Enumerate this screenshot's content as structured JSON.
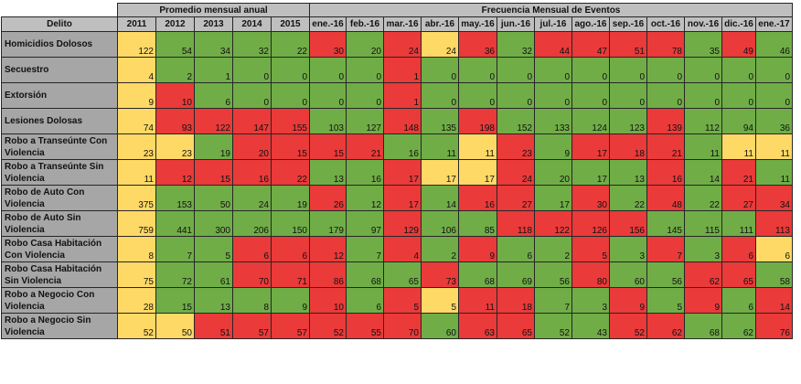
{
  "headers": {
    "delito": "Delito",
    "promedio": "Promedio mensual anual",
    "frecuencia": "Frecuencia Mensual de Eventos",
    "years": [
      "2011",
      "2012",
      "2013",
      "2014",
      "2015"
    ],
    "months": [
      "ene.-16",
      "feb.-16",
      "mar.-16",
      "abr.-16",
      "may.-16",
      "jun.-16",
      "jul.-16",
      "ago.-16",
      "sep.-16",
      "oct.-16",
      "nov.-16",
      "dic.-16",
      "ene.-17"
    ]
  },
  "colors": {
    "yellow": "#ffd966",
    "green": "#70ad47",
    "red": "#ea3a3a",
    "header_gray": "#bfbfbf",
    "label_gray": "#a6a6a6"
  },
  "rows": [
    {
      "label": "Homicidios Dolosos",
      "values": [
        "122",
        "54",
        "34",
        "32",
        "22",
        "30",
        "20",
        "24",
        "24",
        "36",
        "32",
        "44",
        "47",
        "51",
        "78",
        "35",
        "49",
        "46"
      ],
      "colors": [
        "y",
        "g",
        "g",
        "g",
        "g",
        "r",
        "g",
        "r",
        "y",
        "r",
        "g",
        "r",
        "r",
        "r",
        "r",
        "g",
        "r",
        "g"
      ]
    },
    {
      "label": "Secuestro",
      "values": [
        "4",
        "2",
        "1",
        "0",
        "0",
        "0",
        "0",
        "1",
        "0",
        "0",
        "0",
        "0",
        "0",
        "0",
        "0",
        "0",
        "0",
        "0"
      ],
      "colors": [
        "y",
        "g",
        "g",
        "g",
        "g",
        "g",
        "g",
        "r",
        "g",
        "g",
        "g",
        "g",
        "g",
        "g",
        "g",
        "g",
        "g",
        "g"
      ]
    },
    {
      "label": "Extorsión",
      "values": [
        "9",
        "10",
        "6",
        "0",
        "0",
        "0",
        "0",
        "1",
        "0",
        "0",
        "0",
        "0",
        "0",
        "0",
        "0",
        "0",
        "0",
        "0"
      ],
      "colors": [
        "y",
        "r",
        "g",
        "g",
        "g",
        "g",
        "g",
        "r",
        "g",
        "g",
        "g",
        "g",
        "g",
        "g",
        "g",
        "g",
        "g",
        "g"
      ]
    },
    {
      "label": "Lesiones Dolosas",
      "values": [
        "74",
        "93",
        "122",
        "147",
        "155",
        "103",
        "127",
        "148",
        "135",
        "198",
        "152",
        "133",
        "124",
        "123",
        "139",
        "112",
        "94",
        "36"
      ],
      "colors": [
        "y",
        "r",
        "r",
        "r",
        "r",
        "g",
        "g",
        "r",
        "g",
        "r",
        "g",
        "g",
        "g",
        "g",
        "r",
        "g",
        "g",
        "g"
      ]
    },
    {
      "label": "Robo a Transeúnte Con Violencia",
      "values": [
        "23",
        "23",
        "19",
        "20",
        "15",
        "15",
        "21",
        "16",
        "11",
        "11",
        "23",
        "9",
        "17",
        "18",
        "21",
        "11",
        "11",
        "11"
      ],
      "colors": [
        "y",
        "y",
        "g",
        "r",
        "r",
        "r",
        "r",
        "g",
        "g",
        "y",
        "r",
        "g",
        "r",
        "r",
        "r",
        "g",
        "y",
        "y"
      ]
    },
    {
      "label": "Robo a Transeúnte Sin Violencia",
      "values": [
        "11",
        "12",
        "15",
        "16",
        "22",
        "13",
        "16",
        "17",
        "17",
        "17",
        "24",
        "20",
        "17",
        "13",
        "16",
        "14",
        "21",
        "11"
      ],
      "colors": [
        "y",
        "r",
        "r",
        "r",
        "r",
        "g",
        "g",
        "r",
        "y",
        "y",
        "r",
        "g",
        "g",
        "g",
        "r",
        "g",
        "r",
        "g"
      ]
    },
    {
      "label": "Robo de Auto Con Violencia",
      "values": [
        "375",
        "153",
        "50",
        "24",
        "19",
        "26",
        "12",
        "17",
        "14",
        "16",
        "27",
        "17",
        "30",
        "22",
        "48",
        "22",
        "27",
        "34"
      ],
      "colors": [
        "y",
        "g",
        "g",
        "g",
        "g",
        "r",
        "g",
        "r",
        "g",
        "r",
        "r",
        "g",
        "r",
        "g",
        "r",
        "g",
        "r",
        "r"
      ]
    },
    {
      "label": "Robo de Auto Sin Violencia",
      "values": [
        "759",
        "441",
        "300",
        "206",
        "150",
        "179",
        "97",
        "129",
        "106",
        "85",
        "118",
        "122",
        "126",
        "156",
        "145",
        "115",
        "111",
        "113"
      ],
      "colors": [
        "y",
        "g",
        "g",
        "g",
        "g",
        "g",
        "g",
        "r",
        "g",
        "g",
        "r",
        "r",
        "r",
        "r",
        "g",
        "g",
        "g",
        "r"
      ]
    },
    {
      "label": "Robo Casa Habitación Con Violencia",
      "values": [
        "8",
        "7",
        "5",
        "6",
        "6",
        "12",
        "7",
        "4",
        "2",
        "9",
        "6",
        "2",
        "5",
        "3",
        "7",
        "3",
        "6",
        "6"
      ],
      "colors": [
        "y",
        "g",
        "g",
        "r",
        "r",
        "r",
        "g",
        "r",
        "g",
        "r",
        "g",
        "g",
        "r",
        "g",
        "r",
        "g",
        "r",
        "y"
      ]
    },
    {
      "label": "Robo Casa Habitación Sin Violencia",
      "values": [
        "75",
        "72",
        "61",
        "70",
        "71",
        "86",
        "68",
        "65",
        "73",
        "68",
        "69",
        "56",
        "80",
        "60",
        "56",
        "62",
        "65",
        "58"
      ],
      "colors": [
        "y",
        "g",
        "g",
        "r",
        "r",
        "r",
        "g",
        "g",
        "r",
        "g",
        "g",
        "g",
        "r",
        "g",
        "g",
        "r",
        "r",
        "g"
      ]
    },
    {
      "label": "Robo a Negocio Con Violencia",
      "values": [
        "28",
        "15",
        "13",
        "8",
        "9",
        "10",
        "6",
        "5",
        "5",
        "11",
        "18",
        "7",
        "3",
        "9",
        "5",
        "9",
        "6",
        "14"
      ],
      "colors": [
        "y",
        "g",
        "g",
        "g",
        "g",
        "r",
        "g",
        "r",
        "y",
        "r",
        "r",
        "g",
        "g",
        "r",
        "g",
        "r",
        "g",
        "r"
      ]
    },
    {
      "label": "Robo a Negocio Sin Violencia",
      "values": [
        "52",
        "50",
        "51",
        "57",
        "57",
        "52",
        "55",
        "70",
        "60",
        "63",
        "65",
        "52",
        "43",
        "52",
        "62",
        "68",
        "62",
        "76"
      ],
      "colors": [
        "y",
        "y",
        "r",
        "r",
        "r",
        "r",
        "r",
        "r",
        "g",
        "r",
        "r",
        "g",
        "g",
        "r",
        "r",
        "g",
        "g",
        "r"
      ]
    }
  ]
}
